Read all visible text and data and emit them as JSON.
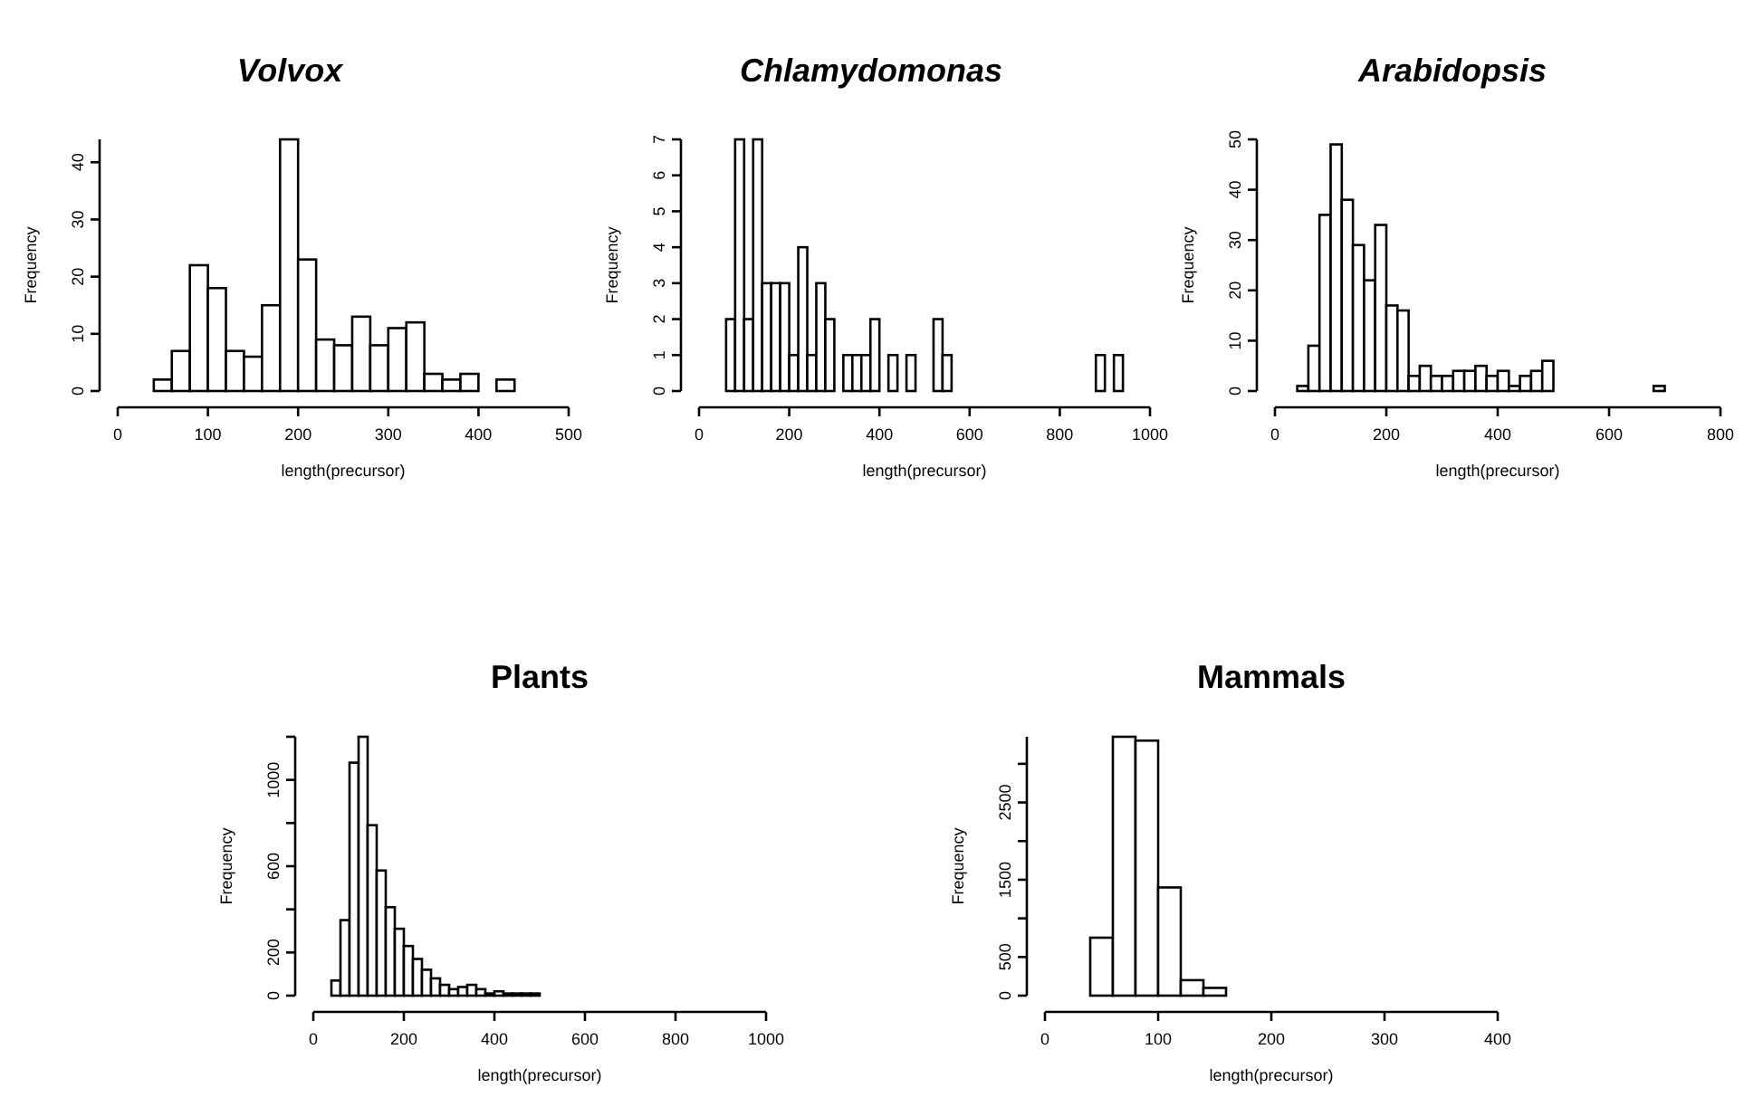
{
  "chart_data": [
    {
      "type": "histogram",
      "title": "Volvox",
      "xlabel": "length(precursor)",
      "ylabel": "Frequency",
      "bins": [
        0,
        20,
        40,
        60,
        80,
        100,
        120,
        140,
        160,
        180,
        200,
        220,
        240,
        260,
        280,
        300,
        320,
        340,
        360,
        380,
        400,
        420,
        440,
        460,
        480,
        500
      ],
      "values": [
        0,
        0,
        2,
        7,
        22,
        18,
        7,
        6,
        15,
        44,
        23,
        9,
        8,
        13,
        8,
        11,
        12,
        3,
        2,
        3,
        0,
        2,
        0,
        0,
        0
      ],
      "color": "#ffffff",
      "xlim": [
        0,
        500
      ],
      "xticks": [
        0,
        100,
        200,
        300,
        400,
        500
      ],
      "ylim": [
        0,
        44
      ],
      "yticks": [
        0,
        10,
        20,
        30,
        40
      ]
    },
    {
      "type": "histogram",
      "title": "Chlamydomonas",
      "xlabel": "length(precursor)",
      "ylabel": "Frequency",
      "bins": [
        0,
        20,
        40,
        60,
        80,
        100,
        120,
        140,
        160,
        180,
        200,
        220,
        240,
        260,
        280,
        300,
        320,
        340,
        360,
        380,
        400,
        420,
        440,
        460,
        480,
        500,
        520,
        540,
        560,
        580,
        600,
        620,
        640,
        660,
        680,
        700,
        720,
        740,
        760,
        780,
        800,
        820,
        840,
        860,
        880,
        900,
        920,
        940,
        960,
        980,
        1000
      ],
      "values": [
        0,
        0,
        0,
        2,
        7,
        2,
        7,
        3,
        3,
        3,
        1,
        4,
        1,
        3,
        2,
        0,
        1,
        1,
        1,
        2,
        0,
        1,
        0,
        1,
        0,
        0,
        2,
        1,
        0,
        0,
        0,
        0,
        0,
        0,
        0,
        0,
        0,
        0,
        0,
        0,
        0,
        0,
        0,
        0,
        1,
        0,
        1,
        0,
        0,
        0
      ],
      "color": "#ffffff",
      "xlim": [
        0,
        1000
      ],
      "xticks": [
        0,
        200,
        400,
        600,
        800,
        1000
      ],
      "ylim": [
        0,
        7
      ],
      "yticks": [
        0,
        1,
        2,
        3,
        4,
        5,
        6,
        7
      ]
    },
    {
      "type": "histogram",
      "title": "Arabidopsis",
      "xlabel": "length(precursor)",
      "ylabel": "Frequency",
      "bins": [
        0,
        20,
        40,
        60,
        80,
        100,
        120,
        140,
        160,
        180,
        200,
        220,
        240,
        260,
        280,
        300,
        320,
        340,
        360,
        380,
        400,
        420,
        440,
        460,
        480,
        500,
        520,
        540,
        560,
        580,
        600,
        620,
        640,
        660,
        680,
        700,
        720,
        740,
        760,
        780,
        800
      ],
      "values": [
        0,
        0,
        1,
        9,
        35,
        49,
        38,
        29,
        22,
        33,
        17,
        16,
        3,
        5,
        3,
        3,
        4,
        4,
        5,
        3,
        4,
        1,
        3,
        4,
        6,
        0,
        0,
        0,
        0,
        0,
        0,
        0,
        0,
        0,
        1,
        0,
        0,
        0,
        0,
        0
      ],
      "color": "#ffffff",
      "xlim": [
        0,
        800
      ],
      "xticks": [
        0,
        200,
        400,
        600,
        800
      ],
      "ylim": [
        0,
        50
      ],
      "yticks": [
        0,
        10,
        20,
        30,
        40,
        50
      ]
    },
    {
      "type": "histogram",
      "title": "Plants",
      "xlabel": "length(precursor)",
      "ylabel": "Frequency",
      "bins": [
        0,
        20,
        40,
        60,
        80,
        100,
        120,
        140,
        160,
        180,
        200,
        220,
        240,
        260,
        280,
        300,
        320,
        340,
        360,
        380,
        400,
        420,
        440,
        460,
        480,
        500,
        520,
        540,
        560,
        580,
        600,
        620,
        640,
        660,
        680,
        700,
        720,
        740,
        760,
        780,
        800,
        820,
        840,
        860,
        880,
        900,
        920,
        940,
        960,
        980,
        1000
      ],
      "values": [
        0,
        0,
        70,
        350,
        1080,
        1200,
        790,
        580,
        410,
        310,
        230,
        170,
        120,
        80,
        50,
        30,
        40,
        50,
        30,
        10,
        20,
        10,
        10,
        10,
        10,
        0,
        0,
        0,
        0,
        0,
        0,
        0,
        0,
        0,
        0,
        0,
        0,
        0,
        0,
        0,
        0,
        0,
        0,
        0,
        0,
        0,
        0,
        0,
        0,
        0
      ],
      "color": "#ffffff",
      "xlim": [
        0,
        1000
      ],
      "xticks": [
        0,
        200,
        400,
        600,
        800,
        1000
      ],
      "ylim": [
        0,
        1200
      ],
      "yticks": [
        0,
        200,
        {
          "value": 400,
          "label": null
        },
        600,
        {
          "value": 800,
          "label": null
        },
        1000,
        {
          "value": 1200,
          "label": null
        }
      ]
    },
    {
      "type": "histogram",
      "title": "Mammals",
      "xlabel": "length(precursor)",
      "ylabel": "Frequency",
      "bins": [
        0,
        20,
        40,
        60,
        80,
        100,
        120,
        140,
        160,
        180,
        200,
        220,
        240,
        260,
        280,
        300,
        320,
        340,
        360,
        380,
        400
      ],
      "values": [
        0,
        0,
        750,
        3350,
        3300,
        1400,
        200,
        100,
        0,
        0,
        0,
        0,
        0,
        0,
        0,
        0,
        0,
        0,
        0,
        0
      ],
      "color": "#ffffff",
      "xlim": [
        0,
        400
      ],
      "xticks": [
        0,
        100,
        200,
        300,
        400
      ],
      "ylim": [
        0,
        3350
      ],
      "yticks": [
        0,
        500,
        {
          "value": 1000,
          "label": null
        },
        1500,
        {
          "value": 2000,
          "label": null
        },
        2500,
        {
          "value": 3000,
          "label": null
        }
      ]
    }
  ]
}
